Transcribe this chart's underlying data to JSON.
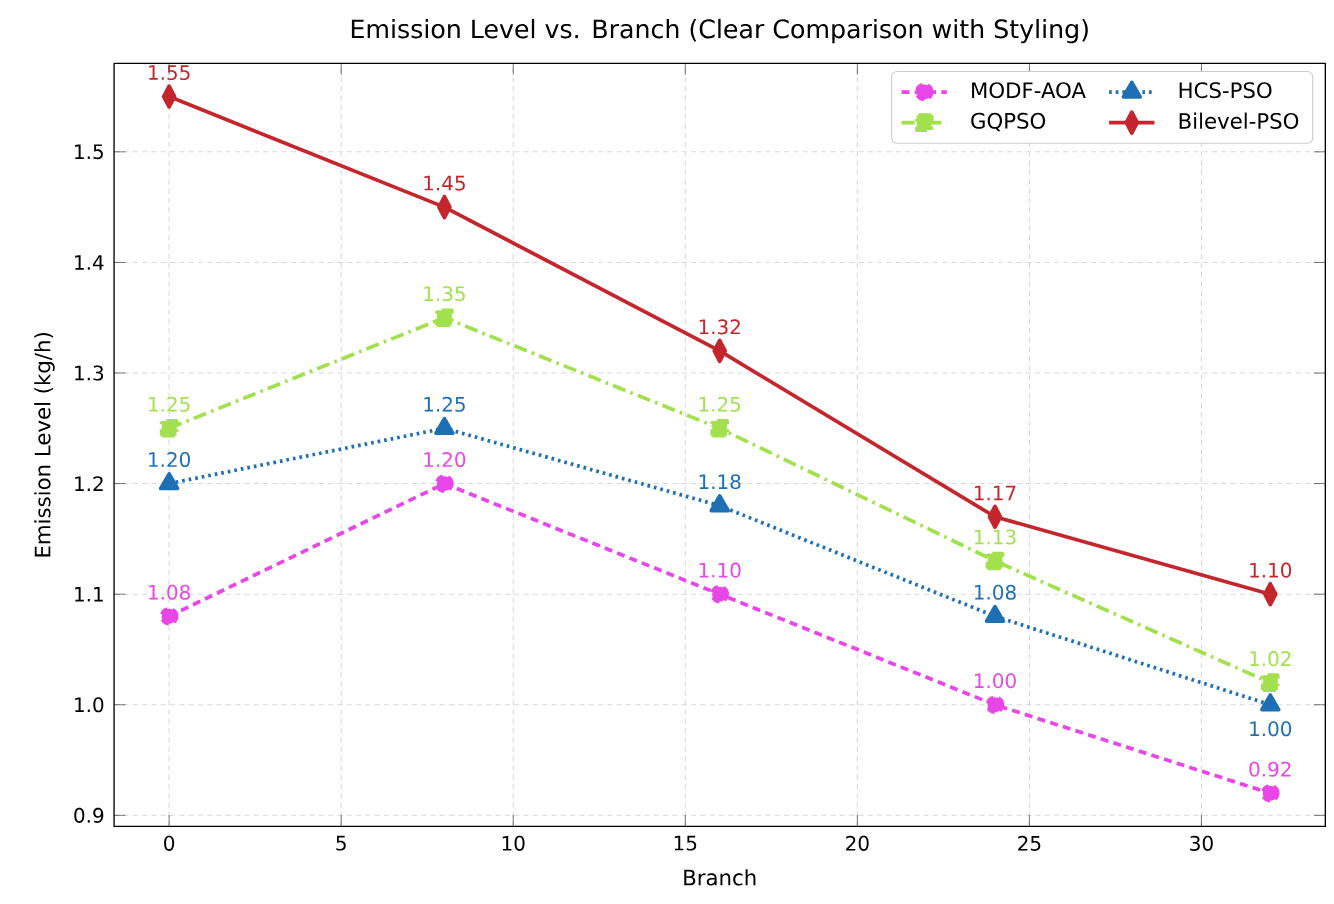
{
  "chart_data": {
    "type": "line",
    "title": "Emission Level vs. Branch (Clear Comparison with Styling)",
    "xlabel": "Branch",
    "ylabel": "Emission Level (kg/h)",
    "x": [
      0,
      8,
      16,
      24,
      32
    ],
    "series": [
      {
        "name": "MODF-AOA",
        "color": "#e846e8",
        "marker": "circle",
        "line_style": "dashed",
        "values": [
          1.08,
          1.2,
          1.1,
          1.0,
          0.92
        ],
        "value_labels": [
          "1.08",
          "1.20",
          "1.10",
          "1.00",
          "0.92"
        ]
      },
      {
        "name": "GQPSO",
        "color": "#a3e04e",
        "marker": "square",
        "line_style": "dashdot",
        "values": [
          1.25,
          1.35,
          1.25,
          1.13,
          1.02
        ],
        "value_labels": [
          "1.25",
          "1.35",
          "1.25",
          "1.13",
          "1.02"
        ]
      },
      {
        "name": "HCS-PSO",
        "color": "#1f6fb4",
        "marker": "triangle",
        "line_style": "dotted",
        "values": [
          1.2,
          1.25,
          1.18,
          1.08,
          1.0
        ],
        "value_labels": [
          "1.20",
          "1.25",
          "1.18",
          "1.08",
          "1.00"
        ]
      },
      {
        "name": "Bilevel-PSO",
        "color": "#c4262e",
        "marker": "diamond",
        "line_style": "solid",
        "values": [
          1.55,
          1.45,
          1.32,
          1.17,
          1.1
        ],
        "value_labels": [
          "1.55",
          "1.45",
          "1.32",
          "1.17",
          "1.10"
        ]
      }
    ],
    "xlim": [
      -1.6,
      33.6
    ],
    "ylim": [
      0.89,
      1.58
    ],
    "xticks": [
      0,
      5,
      10,
      15,
      20,
      25,
      30
    ],
    "yticks": [
      {
        "value": 0.9,
        "label": "0.9"
      },
      {
        "value": 1.0,
        "label": "1.0"
      },
      {
        "value": 1.1,
        "label": "1.1"
      },
      {
        "value": 1.2,
        "label": "1.2"
      },
      {
        "value": 1.3,
        "label": "1.3"
      },
      {
        "value": 1.4,
        "label": "1.4"
      },
      {
        "value": 1.5,
        "label": "1.5"
      }
    ],
    "grid": true,
    "legend": "top right"
  }
}
